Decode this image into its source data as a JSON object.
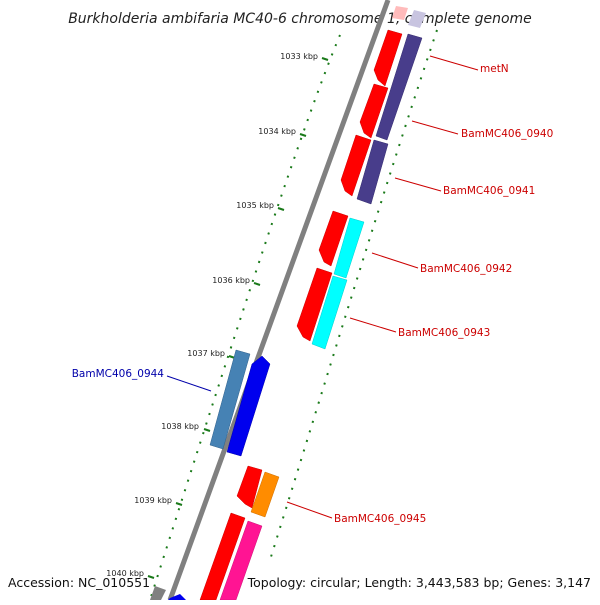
{
  "title": "Burkholderia ambifaria MC40-6 chromosome 1, complete genome",
  "footer": {
    "accession": "Accession: NC_010551",
    "summary": "Topology: circular; Length: 3,443,583 bp; Genes: 3,147"
  },
  "ticks": [
    "1033 kbp",
    "1034 kbp",
    "1035 kbp",
    "1036 kbp",
    "1037 kbp",
    "1038 kbp",
    "1039 kbp",
    "1040 kbp"
  ],
  "gene_labels": {
    "metN": "metN",
    "g0940": "BamMC406_0940",
    "g0941": "BamMC406_0941",
    "g0942": "BamMC406_0942",
    "g0943": "BamMC406_0943",
    "g0944": "BamMC406_0944",
    "g0945": "BamMC406_0945"
  },
  "colors": {
    "forward_label": "#cc0000",
    "reverse_label": "#0000aa",
    "backbone": "#808080",
    "tick": "#1a7a1a",
    "red": "#ff0000",
    "slate": "#483d8b",
    "cyan": "#00ffff",
    "blue": "#0000ee",
    "steelblue": "#4682b4",
    "orange": "#ff8c00",
    "pink": "#ff1493",
    "gray": "#808080"
  }
}
